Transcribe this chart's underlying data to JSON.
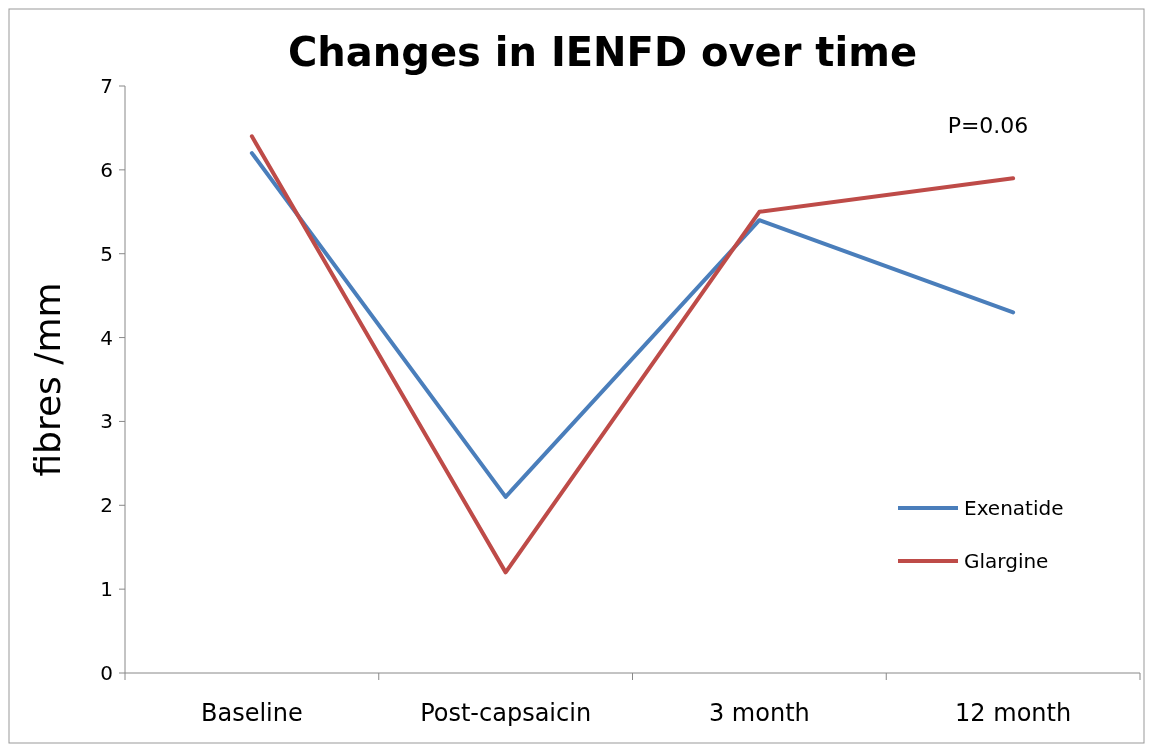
{
  "chart_data": {
    "type": "line",
    "title": "Changes in IENFD over time",
    "ylabel": "fibres /mm",
    "categories": [
      "Baseline",
      "Post-capsaicin",
      "3 month",
      "12 month"
    ],
    "series": [
      {
        "name": "Exenatide",
        "color": "#4a7ebb",
        "values": [
          6.2,
          2.1,
          5.4,
          4.3
        ]
      },
      {
        "name": "Glargine",
        "color": "#be4b48",
        "values": [
          6.4,
          1.2,
          5.5,
          5.9
        ]
      }
    ],
    "ylim": [
      0,
      7
    ],
    "yticks": [
      0,
      1,
      2,
      3,
      4,
      5,
      6,
      7
    ],
    "annotations": [
      "P=0.06"
    ],
    "legend": "right",
    "grid": false,
    "marker": "none",
    "line_style": "solid"
  }
}
